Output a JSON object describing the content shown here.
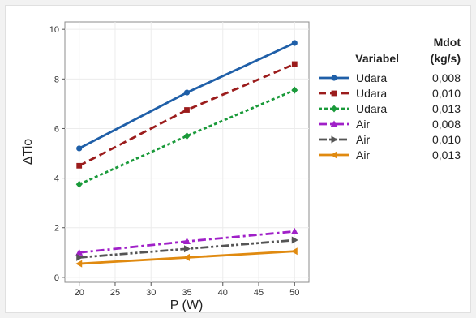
{
  "chart_data": {
    "type": "line",
    "xlabel": "P (W)",
    "ylabel": "ΔTio",
    "x": [
      20,
      35,
      50
    ],
    "xlim": [
      18,
      52
    ],
    "ylim": [
      -0.2,
      10.3
    ],
    "xticks": [
      20,
      25,
      30,
      35,
      40,
      45,
      50
    ],
    "yticks": [
      0,
      2,
      4,
      6,
      8,
      10
    ],
    "grid": true,
    "legend_placement": "right",
    "legend_headers": {
      "variabel": "Variabel",
      "mdot_line1": "Mdot",
      "mdot_line2": "(kg/s)"
    },
    "series": [
      {
        "variabel": "Udara",
        "mdot": "0,008",
        "values": [
          5.2,
          7.45,
          9.45
        ],
        "color": "#1f5fa8",
        "dash": "solid",
        "marker": "circle"
      },
      {
        "variabel": "Udara",
        "mdot": "0,010",
        "values": [
          4.5,
          6.75,
          8.6
        ],
        "color": "#9b1c1c",
        "dash": "dash",
        "marker": "square"
      },
      {
        "variabel": "Udara",
        "mdot": "0,013",
        "values": [
          3.75,
          5.7,
          7.55
        ],
        "color": "#1a9a3a",
        "dash": "dot",
        "marker": "diamond"
      },
      {
        "variabel": "Air",
        "mdot": "0,008",
        "values": [
          1.0,
          1.45,
          1.85
        ],
        "color": "#a020c8",
        "dash": "dashdot",
        "marker": "triangle-up"
      },
      {
        "variabel": "Air",
        "mdot": "0,010",
        "values": [
          0.8,
          1.15,
          1.5
        ],
        "color": "#555555",
        "dash": "dashdotdot",
        "marker": "triangle-right"
      },
      {
        "variabel": "Air",
        "mdot": "0,013",
        "values": [
          0.55,
          0.8,
          1.05
        ],
        "color": "#e08a10",
        "dash": "solid",
        "marker": "triangle-left"
      }
    ]
  }
}
